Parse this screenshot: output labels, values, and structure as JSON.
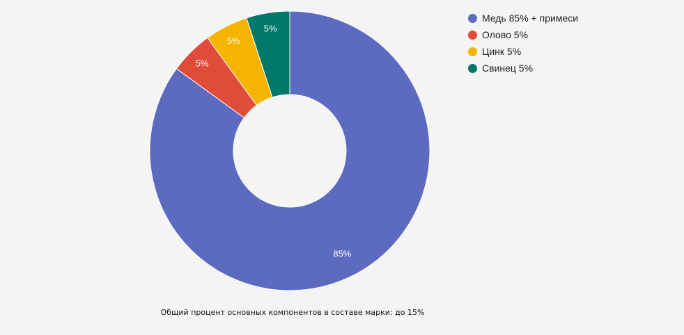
{
  "chart_data": {
    "type": "pie",
    "style": "donut",
    "categories": [
      "Медь 85% + примеси",
      "Олово 5%",
      "Цинк 5%",
      "Свинец 5%"
    ],
    "values": [
      85,
      5,
      5,
      5
    ],
    "data_labels": [
      "85%",
      "5%",
      "5%",
      "5%"
    ],
    "colors": [
      "#5c6bc0",
      "#e04b3a",
      "#f4b400",
      "#00796b"
    ],
    "label_color": "#ffffff",
    "legend_position": "top-right",
    "caption": "Общий процент основных компонентов в составе марки: до 15%"
  }
}
